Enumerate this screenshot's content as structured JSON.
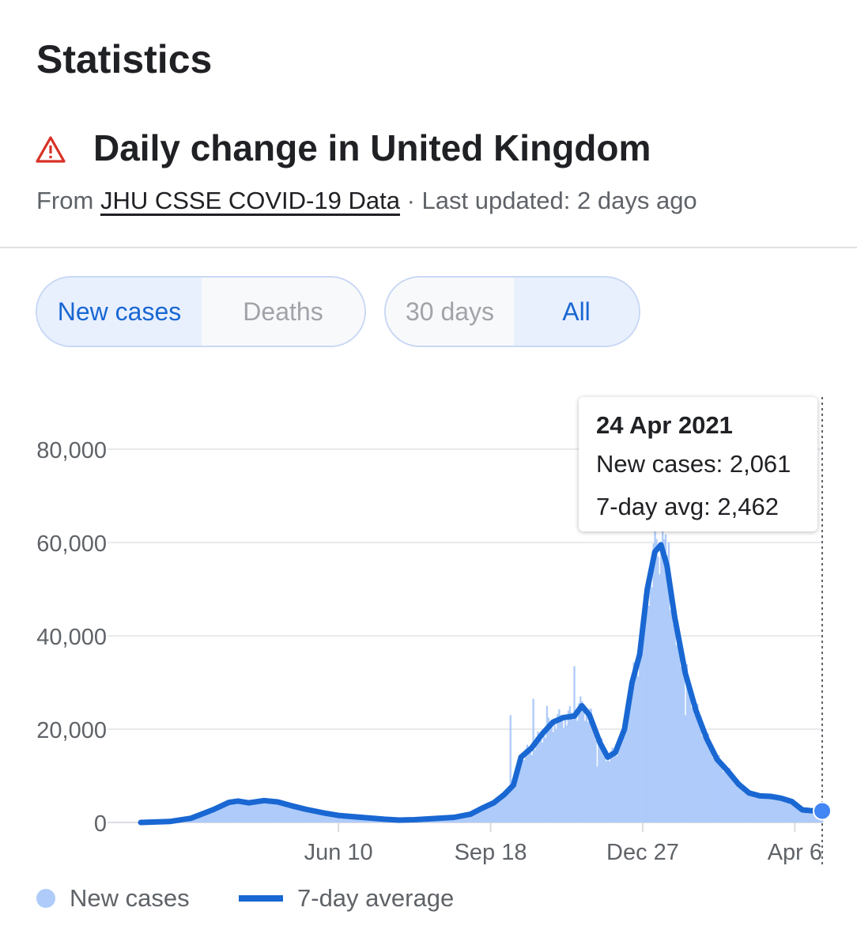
{
  "header": {
    "title": "Statistics",
    "subtitle": "Daily change in United Kingdom",
    "source_prefix": "From",
    "source_link": "JHU CSSE COVID-19 Data",
    "updated": "· Last updated: 2 days ago"
  },
  "toggles": {
    "metric": [
      {
        "label": "New cases",
        "selected": true
      },
      {
        "label": "Deaths",
        "selected": false
      }
    ],
    "range": [
      {
        "label": "30 days",
        "selected": false
      },
      {
        "label": "All",
        "selected": true
      }
    ]
  },
  "tooltip": {
    "date": "24 Apr 2021",
    "new_cases": "New cases: 2,061",
    "avg": "7-day avg: 2,462"
  },
  "legend": {
    "bars": "New cases",
    "line": "7-day average"
  },
  "colors": {
    "accent": "#1967d2",
    "bars": "#aecbfa",
    "warning": "#d93025"
  },
  "chart_data": {
    "type": "area",
    "title": "",
    "xlabel": "",
    "ylabel": "",
    "x_start": "2020-02-01",
    "x_end": "2021-04-24",
    "x_ticks": [
      {
        "date": "2020-06-10",
        "label": "Jun 10"
      },
      {
        "date": "2020-09-18",
        "label": "Sep 18"
      },
      {
        "date": "2020-12-27",
        "label": "Dec 27"
      },
      {
        "date": "2021-04-06",
        "label": "Apr 6"
      }
    ],
    "y_ticks": [
      0,
      20000,
      40000,
      60000,
      80000
    ],
    "y_tick_labels": [
      "0",
      "20,000",
      "40,000",
      "60,000",
      "80,000"
    ],
    "ylim": [
      0,
      80000
    ],
    "grid": true,
    "legend_position": "bottom-left",
    "series": [
      {
        "name": "7-day average",
        "type": "line",
        "points": [
          [
            "2020-02-01",
            0
          ],
          [
            "2020-02-20",
            200
          ],
          [
            "2020-03-05",
            900
          ],
          [
            "2020-03-20",
            2800
          ],
          [
            "2020-03-30",
            4300
          ],
          [
            "2020-04-05",
            4600
          ],
          [
            "2020-04-12",
            4200
          ],
          [
            "2020-04-22",
            4700
          ],
          [
            "2020-05-01",
            4400
          ],
          [
            "2020-05-10",
            3600
          ],
          [
            "2020-05-20",
            2800
          ],
          [
            "2020-06-01",
            2000
          ],
          [
            "2020-06-10",
            1500
          ],
          [
            "2020-06-25",
            1100
          ],
          [
            "2020-07-10",
            700
          ],
          [
            "2020-07-20",
            500
          ],
          [
            "2020-07-30",
            600
          ],
          [
            "2020-08-10",
            800
          ],
          [
            "2020-08-25",
            1100
          ],
          [
            "2020-09-05",
            1800
          ],
          [
            "2020-09-12",
            3000
          ],
          [
            "2020-09-20",
            4200
          ],
          [
            "2020-09-27",
            6000
          ],
          [
            "2020-10-03",
            8000
          ],
          [
            "2020-10-08",
            14000
          ],
          [
            "2020-10-15",
            16000
          ],
          [
            "2020-10-22",
            19000
          ],
          [
            "2020-10-29",
            21500
          ],
          [
            "2020-11-05",
            22500
          ],
          [
            "2020-11-12",
            22800
          ],
          [
            "2020-11-17",
            25000
          ],
          [
            "2020-11-22",
            23000
          ],
          [
            "2020-11-29",
            17000
          ],
          [
            "2020-12-04",
            14000
          ],
          [
            "2020-12-09",
            15000
          ],
          [
            "2020-12-15",
            20000
          ],
          [
            "2020-12-20",
            30000
          ],
          [
            "2020-12-25",
            36000
          ],
          [
            "2020-12-30",
            50000
          ],
          [
            "2021-01-04",
            58000
          ],
          [
            "2021-01-08",
            59500
          ],
          [
            "2021-01-12",
            55000
          ],
          [
            "2021-01-17",
            44000
          ],
          [
            "2021-01-24",
            32000
          ],
          [
            "2021-01-31",
            24000
          ],
          [
            "2021-02-07",
            18000
          ],
          [
            "2021-02-14",
            13500
          ],
          [
            "2021-02-21",
            11000
          ],
          [
            "2021-02-28",
            8200
          ],
          [
            "2021-03-07",
            6300
          ],
          [
            "2021-03-14",
            5700
          ],
          [
            "2021-03-21",
            5600
          ],
          [
            "2021-03-28",
            5200
          ],
          [
            "2021-04-04",
            4500
          ],
          [
            "2021-04-11",
            2700
          ],
          [
            "2021-04-18",
            2500
          ],
          [
            "2021-04-24",
            2462
          ]
        ]
      },
      {
        "name": "New cases",
        "type": "bar",
        "spikes": [
          [
            "2020-10-01",
            23000
          ],
          [
            "2020-10-16",
            26500
          ],
          [
            "2020-10-25",
            25000
          ],
          [
            "2020-11-12",
            33500
          ],
          [
            "2020-11-27",
            12000
          ],
          [
            "2021-01-09",
            68000
          ],
          [
            "2021-01-13",
            60000
          ],
          [
            "2021-01-18",
            38000
          ],
          [
            "2021-01-24",
            23000
          ]
        ],
        "last_value": 2061
      }
    ]
  }
}
